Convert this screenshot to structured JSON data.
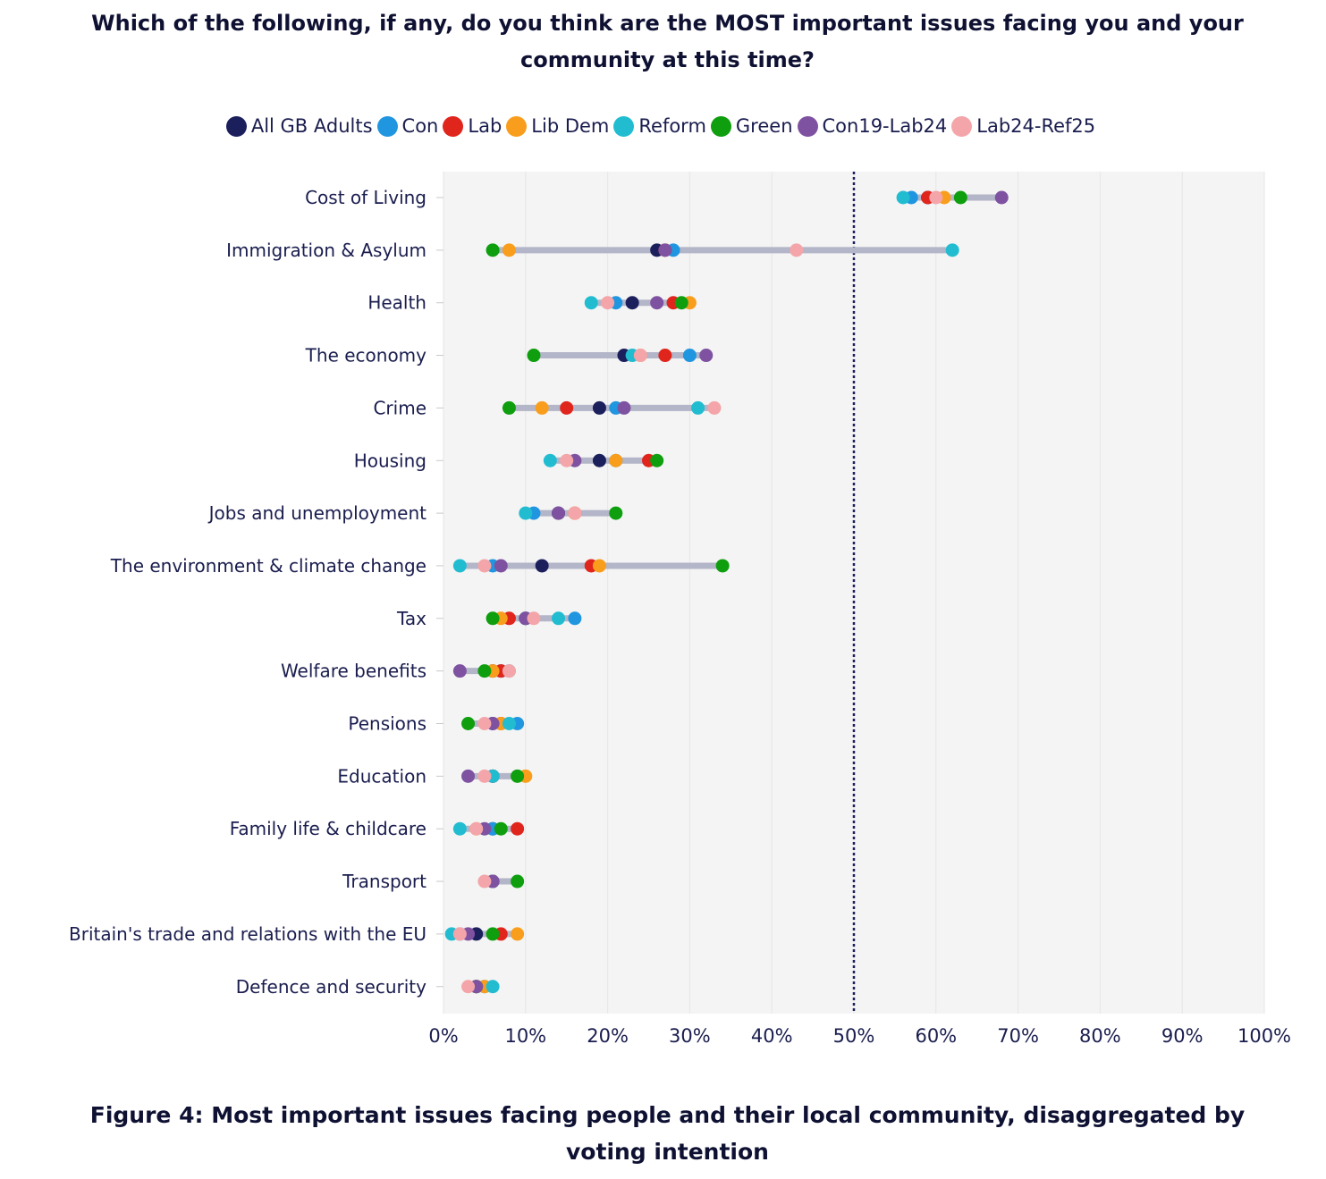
{
  "chart_data": {
    "type": "scatter",
    "subtype": "dumbbell",
    "title": "Which of the following, if any, do you think are the MOST important issues facing you and your community at this time?",
    "caption": "Figure 4: Most important issues facing people and their local community, disaggregated by voting intention",
    "xlabel": "",
    "ylabel": "",
    "xlim": [
      0,
      100
    ],
    "x_ticks": [
      "0%",
      "10%",
      "20%",
      "30%",
      "40%",
      "50%",
      "60%",
      "70%",
      "80%",
      "90%",
      "100%"
    ],
    "reference_line": 50,
    "legend_position": "top",
    "categories": [
      "Cost of Living",
      "Immigration & Asylum",
      "Health",
      "The economy",
      "Crime",
      "Housing",
      "Jobs and unemployment",
      "The environment & climate change",
      "Tax",
      "Welfare benefits",
      "Pensions",
      "Education",
      "Family life & childcare",
      "Transport",
      "Britain's trade and relations with the EU",
      "Defence and security"
    ],
    "series": [
      {
        "name": "All GB Adults",
        "color": "#1b1f5c",
        "values": [
          59,
          26,
          23,
          22,
          19,
          19,
          14,
          12,
          10,
          6,
          6,
          6,
          6,
          6,
          4,
          4
        ]
      },
      {
        "name": "Con",
        "color": "#2196e0",
        "values": [
          57,
          28,
          21,
          30,
          21,
          21,
          11,
          6,
          16,
          7,
          9,
          6,
          6,
          6,
          2,
          5
        ]
      },
      {
        "name": "Lab",
        "color": "#e0251c",
        "values": [
          59,
          27,
          28,
          27,
          15,
          25,
          16,
          18,
          8,
          7,
          7,
          6,
          9,
          6,
          7,
          4
        ]
      },
      {
        "name": "Lib Dem",
        "color": "#f99d1c",
        "values": [
          61,
          8,
          30,
          24,
          12,
          21,
          16,
          19,
          7,
          6,
          7,
          10,
          4,
          6,
          9,
          5
        ]
      },
      {
        "name": "Reform",
        "color": "#22bcd1",
        "values": [
          56,
          62,
          18,
          23,
          31,
          13,
          10,
          2,
          14,
          8,
          8,
          6,
          2,
          6,
          1,
          6
        ]
      },
      {
        "name": "Green",
        "color": "#0e9e0e",
        "values": [
          63,
          6,
          29,
          11,
          8,
          26,
          21,
          34,
          6,
          5,
          3,
          9,
          7,
          9,
          6,
          4
        ]
      },
      {
        "name": "Con19-Lab24",
        "color": "#7e52a0",
        "values": [
          68,
          27,
          26,
          32,
          22,
          16,
          14,
          7,
          10,
          2,
          6,
          3,
          5,
          6,
          3,
          4
        ]
      },
      {
        "name": "Lab24-Ref25",
        "color": "#f4a5a9",
        "values": [
          60,
          43,
          20,
          24,
          33,
          15,
          16,
          5,
          11,
          8,
          5,
          5,
          4,
          5,
          2,
          3
        ]
      }
    ]
  }
}
